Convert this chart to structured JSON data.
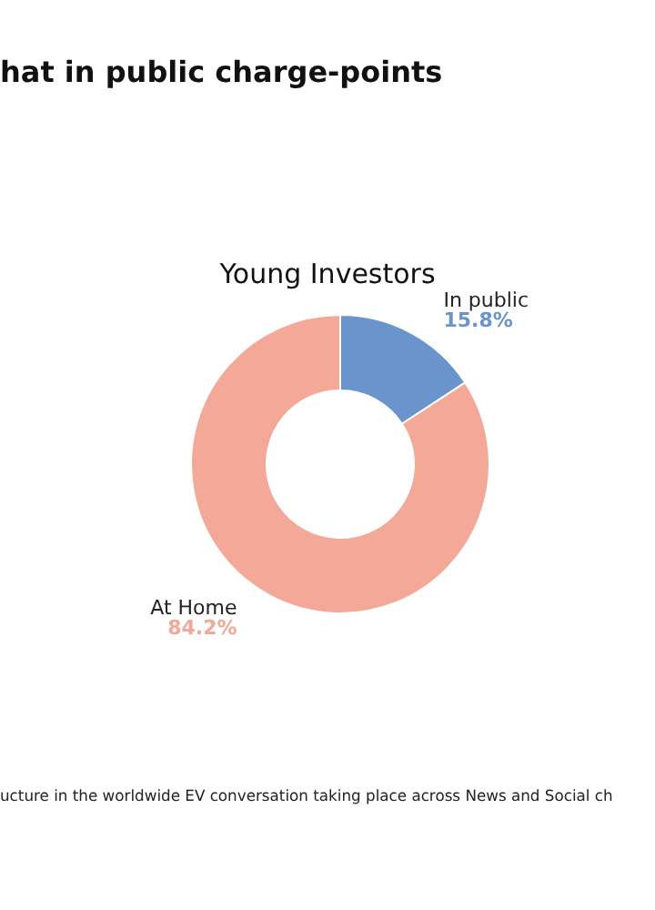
{
  "chart_data": {
    "type": "donut",
    "title": "hat in public charge-points",
    "subtitle": "Young Investors",
    "annotations": [
      "ucture in the worldwide EV conversation taking place across News and Social ch"
    ],
    "categories": [
      "In public",
      "At Home"
    ],
    "values": [
      15.8,
      84.2
    ],
    "value_labels": [
      "15.8%",
      "84.2%"
    ],
    "colors": [
      "#6a95cc",
      "#f4a898"
    ],
    "legend": false
  }
}
